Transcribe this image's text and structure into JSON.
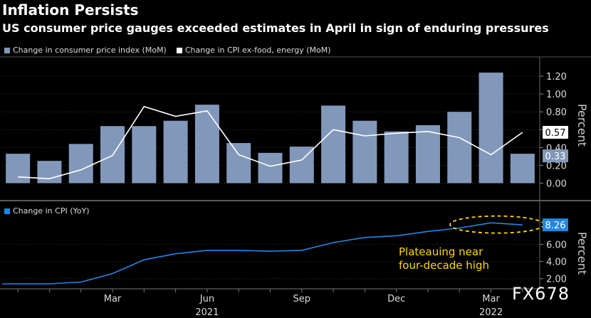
{
  "title": "Inflation Persists",
  "subtitle": "US consumer price gauges exceeded estimates in April in sign of enduring pressures",
  "watermark": "FX678",
  "colors": {
    "bar": "#8298ba",
    "core_line": "#ffffff",
    "yoy_line": "#1e88e5",
    "annotation": "#ffd700"
  },
  "chart_data": [
    {
      "type": "bar",
      "legend": [
        {
          "label": "Change in consumer price index (MoM)",
          "color": "#8298ba"
        },
        {
          "label": "Change in CPI ex-food, energy (MoM)",
          "color": "#ffffff"
        }
      ],
      "series": [
        {
          "name": "Change in consumer price index (MoM)",
          "type": "bar",
          "values": [
            0.33,
            0.25,
            0.44,
            0.64,
            0.64,
            0.7,
            0.88,
            0.45,
            0.34,
            0.41,
            0.87,
            0.7,
            0.58,
            0.65,
            0.8,
            1.24,
            0.33
          ]
        },
        {
          "name": "Change in CPI ex-food, energy (MoM)",
          "type": "line",
          "values": [
            0.07,
            0.05,
            0.15,
            0.31,
            0.86,
            0.75,
            0.81,
            0.32,
            0.19,
            0.26,
            0.6,
            0.53,
            0.56,
            0.58,
            0.51,
            0.32,
            0.57
          ]
        }
      ],
      "ylabel": "Percent",
      "ylim": [
        -0.1,
        1.4
      ],
      "yticks": [
        "0.00",
        "0.20",
        "0.40",
        "0.60",
        "0.80",
        "1.00",
        "1.20"
      ],
      "last_values": [
        {
          "label": "0.57",
          "value": 0.57,
          "color": "#ffffff",
          "text_color": "#000000"
        },
        {
          "label": "0.33",
          "value": 0.33,
          "color": "#8298ba",
          "text_color": "#ffffff"
        }
      ]
    },
    {
      "type": "line",
      "legend": [
        {
          "label": "Change in CPI (YoY)",
          "color": "#1e88e5"
        }
      ],
      "series": [
        {
          "name": "Change in CPI (YoY)",
          "values": [
            1.4,
            1.4,
            1.6,
            2.6,
            4.2,
            4.9,
            5.3,
            5.3,
            5.2,
            5.3,
            6.2,
            6.8,
            7.0,
            7.5,
            7.9,
            8.5,
            8.26
          ]
        }
      ],
      "ylabel": "Percent",
      "ylim": [
        0.9,
        9.1
      ],
      "yticks": [
        "2.00",
        "4.00",
        "6.00"
      ],
      "last_value": {
        "label": "8.26",
        "value": 8.26,
        "color": "#1e88e5",
        "text_color": "#ffffff"
      },
      "annotation": "Plateauing near four-decade high"
    }
  ],
  "x_axis": {
    "month_labels": [
      {
        "label": "Mar",
        "index": 3
      },
      {
        "label": "Jun",
        "index": 6
      },
      {
        "label": "Sep",
        "index": 9
      },
      {
        "label": "Dec",
        "index": 12
      },
      {
        "label": "Mar",
        "index": 15
      }
    ],
    "year_labels": [
      {
        "label": "2021",
        "index": 6
      },
      {
        "label": "2022",
        "index": 15
      }
    ]
  }
}
